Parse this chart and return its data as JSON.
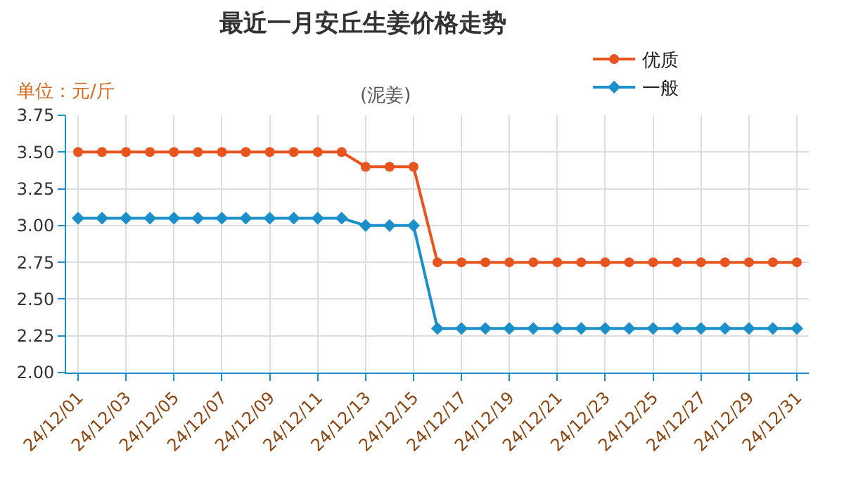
{
  "chart_data": {
    "type": "line",
    "title": "最近一月安丘生姜价格走势",
    "subtitle": "(泥姜)",
    "annotations": [
      "单位：元/斤"
    ],
    "categories": [
      "24/12/01",
      null,
      "24/12/03",
      null,
      "24/12/05",
      null,
      "24/12/07",
      null,
      "24/12/09",
      null,
      "24/12/11",
      null,
      "24/12/13",
      null,
      "24/12/15",
      null,
      "24/12/17",
      null,
      "24/12/19",
      null,
      "24/12/21",
      null,
      "24/12/23",
      null,
      "24/12/25",
      null,
      "24/12/27",
      null,
      "24/12/29",
      null,
      "24/12/31"
    ],
    "series": [
      {
        "name": "优质",
        "color": "#e8541e",
        "marker": "circle",
        "values": [
          3.5,
          3.5,
          3.5,
          3.5,
          3.5,
          3.5,
          3.5,
          3.5,
          3.5,
          3.5,
          3.5,
          3.5,
          3.4,
          3.4,
          3.4,
          2.75,
          2.75,
          2.75,
          2.75,
          2.75,
          2.75,
          2.75,
          2.75,
          2.75,
          2.75,
          2.75,
          2.75,
          2.75,
          2.75,
          2.75,
          2.75
        ]
      },
      {
        "name": "一般",
        "color": "#1a8fc9",
        "marker": "diamond",
        "values": [
          3.05,
          3.05,
          3.05,
          3.05,
          3.05,
          3.05,
          3.05,
          3.05,
          3.05,
          3.05,
          3.05,
          3.05,
          3.0,
          3.0,
          3.0,
          2.3,
          2.3,
          2.3,
          2.3,
          2.3,
          2.3,
          2.3,
          2.3,
          2.3,
          2.3,
          2.3,
          2.3,
          2.3,
          2.3,
          2.3,
          2.3
        ]
      }
    ],
    "ylim": [
      2.0,
      3.75
    ],
    "yticks": [
      {
        "value": 2.0,
        "label": "2.00"
      },
      {
        "value": 2.25,
        "label": "2.25"
      },
      {
        "value": 2.5,
        "label": "2.50"
      },
      {
        "value": 2.75,
        "label": "2.75"
      },
      {
        "value": 3.0,
        "label": "3.00"
      },
      {
        "value": 3.25,
        "label": "3.25"
      },
      {
        "value": 3.5,
        "label": "3.50"
      },
      {
        "value": 3.75,
        "label": "3.75"
      }
    ],
    "grid": true,
    "legend": "top right"
  }
}
